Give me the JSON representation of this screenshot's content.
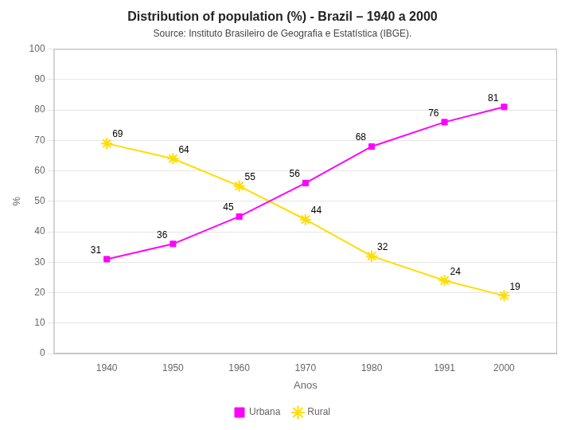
{
  "chart_data": {
    "type": "line",
    "title": "Distribution of population (%) - Brazil – 1940 a 2000",
    "subtitle": "Source: Instituto Brasileiro de Geografia e Estatística (IBGE).",
    "xlabel": "Anos",
    "ylabel": "%",
    "x": [
      1940,
      1950,
      1960,
      1970,
      1980,
      1991,
      2000
    ],
    "series": [
      {
        "name": "Urbana",
        "color": "#FF00FF",
        "marker": "square",
        "values": [
          31,
          36,
          45,
          56,
          68,
          76,
          81
        ]
      },
      {
        "name": "Rural",
        "color": "#FFDD00",
        "marker": "star",
        "values": [
          69,
          64,
          55,
          44,
          32,
          24,
          19
        ]
      }
    ],
    "xlim": [
      1932,
      2008
    ],
    "xticks": [
      1940,
      1950,
      1960,
      1970,
      1980,
      1991,
      2000
    ],
    "ylim": [
      0,
      100
    ],
    "yticks": [
      0,
      10,
      20,
      30,
      40,
      50,
      60,
      70,
      80,
      90,
      100
    ],
    "grid": "y",
    "legend": "bottom",
    "data_labels": true
  }
}
